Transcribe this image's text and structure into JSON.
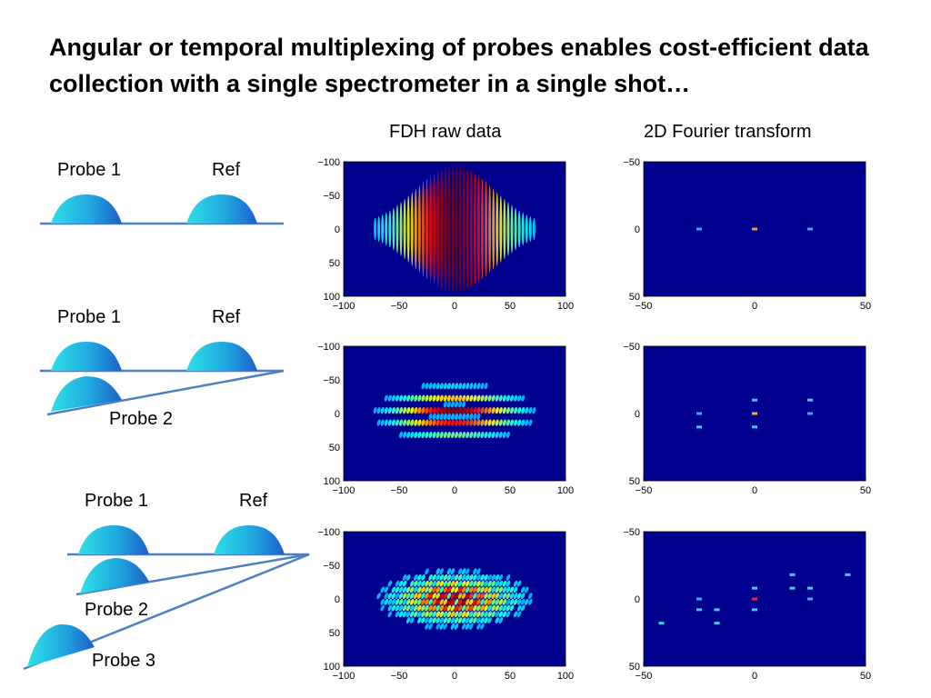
{
  "slide": {
    "title": "Angular or temporal multiplexing of probes enables cost-efficient data collection with a single spectrometer in a single shot…",
    "columns": [
      "FDH raw data",
      "2D Fourier transform"
    ]
  },
  "diagrams": [
    {
      "labels": {
        "probe1": "Probe 1",
        "ref": "Ref"
      }
    },
    {
      "labels": {
        "probe1": "Probe 1",
        "ref": "Ref",
        "probe2": "Probe 2"
      }
    },
    {
      "labels": {
        "probe1": "Probe 1",
        "ref": "Ref",
        "probe2": "Probe 2",
        "probe3": "Probe 3"
      }
    }
  ],
  "colors": {
    "plot_background": "#00008f",
    "pulse_light": "#2ee0e6",
    "pulse_dark": "#1e6fd6",
    "line": "#4f7fc0"
  },
  "chart_data": [
    {
      "type": "heatmap",
      "name_hint": "raw-1",
      "yticks": [
        "−100",
        "−50",
        "0",
        "50",
        "100"
      ],
      "xticks": [
        "−100",
        "−50",
        "0",
        "50",
        "100"
      ],
      "xlim": [
        -100,
        100
      ],
      "ylim": [
        -100,
        100
      ],
      "probes": 1
    },
    {
      "type": "heatmap",
      "name_hint": "ft-1",
      "yticks": [
        "−50",
        "0",
        "50"
      ],
      "xticks": [
        "−50",
        "0",
        "50"
      ],
      "xlim": [
        -50,
        50
      ],
      "ylim": [
        -50,
        50
      ],
      "spots": [
        {
          "x": -25,
          "y": 0,
          "c": "#30b0ff"
        },
        {
          "x": 0,
          "y": 0,
          "c": "#ff9040"
        },
        {
          "x": 25,
          "y": 0,
          "c": "#30b0ff"
        }
      ]
    },
    {
      "type": "heatmap",
      "name_hint": "raw-2",
      "yticks": [
        "−100",
        "−50",
        "0",
        "50",
        "100"
      ],
      "xticks": [
        "−100",
        "−50",
        "0",
        "50",
        "100"
      ],
      "xlim": [
        -100,
        100
      ],
      "ylim": [
        -100,
        100
      ],
      "probes": 2
    },
    {
      "type": "heatmap",
      "name_hint": "ft-2",
      "yticks": [
        "−50",
        "0",
        "50"
      ],
      "xticks": [
        "−50",
        "0",
        "50"
      ],
      "xlim": [
        -50,
        50
      ],
      "ylim": [
        -50,
        50
      ],
      "spots": [
        {
          "x": -25,
          "y": 0,
          "c": "#30b0ff"
        },
        {
          "x": -25,
          "y": 10,
          "c": "#40d0ff"
        },
        {
          "x": 0,
          "y": -10,
          "c": "#40d0ff"
        },
        {
          "x": 0,
          "y": 0,
          "c": "#ffb020"
        },
        {
          "x": 0,
          "y": 10,
          "c": "#40d0ff"
        },
        {
          "x": 25,
          "y": -10,
          "c": "#40d0ff"
        },
        {
          "x": 25,
          "y": 0,
          "c": "#30b0ff"
        }
      ]
    },
    {
      "type": "heatmap",
      "name_hint": "raw-3",
      "yticks": [
        "−100",
        "−50",
        "0",
        "50",
        "100"
      ],
      "xticks": [
        "−100",
        "−50",
        "0",
        "50",
        "100"
      ],
      "xlim": [
        -100,
        100
      ],
      "ylim": [
        -100,
        100
      ],
      "probes": 3
    },
    {
      "type": "heatmap",
      "name_hint": "ft-3",
      "yticks": [
        "−50",
        "0",
        "50"
      ],
      "xticks": [
        "−50",
        "0",
        "50"
      ],
      "xlim": [
        -50,
        50
      ],
      "ylim": [
        -50,
        50
      ],
      "spots": [
        {
          "x": -42,
          "y": 18,
          "c": "#40d0ff"
        },
        {
          "x": -25,
          "y": 0,
          "c": "#30b0ff"
        },
        {
          "x": -25,
          "y": 8,
          "c": "#40d0ff"
        },
        {
          "x": -17,
          "y": 8,
          "c": "#40d0ff"
        },
        {
          "x": -17,
          "y": 18,
          "c": "#40d0ff"
        },
        {
          "x": 0,
          "y": -8,
          "c": "#40d0ff"
        },
        {
          "x": 0,
          "y": 0,
          "c": "#ff2020"
        },
        {
          "x": 0,
          "y": 8,
          "c": "#40d0ff"
        },
        {
          "x": 17,
          "y": -18,
          "c": "#40d0ff"
        },
        {
          "x": 17,
          "y": -8,
          "c": "#40d0ff"
        },
        {
          "x": 25,
          "y": -8,
          "c": "#40d0ff"
        },
        {
          "x": 25,
          "y": 0,
          "c": "#30b0ff"
        },
        {
          "x": 42,
          "y": -18,
          "c": "#40d0ff"
        }
      ]
    }
  ]
}
